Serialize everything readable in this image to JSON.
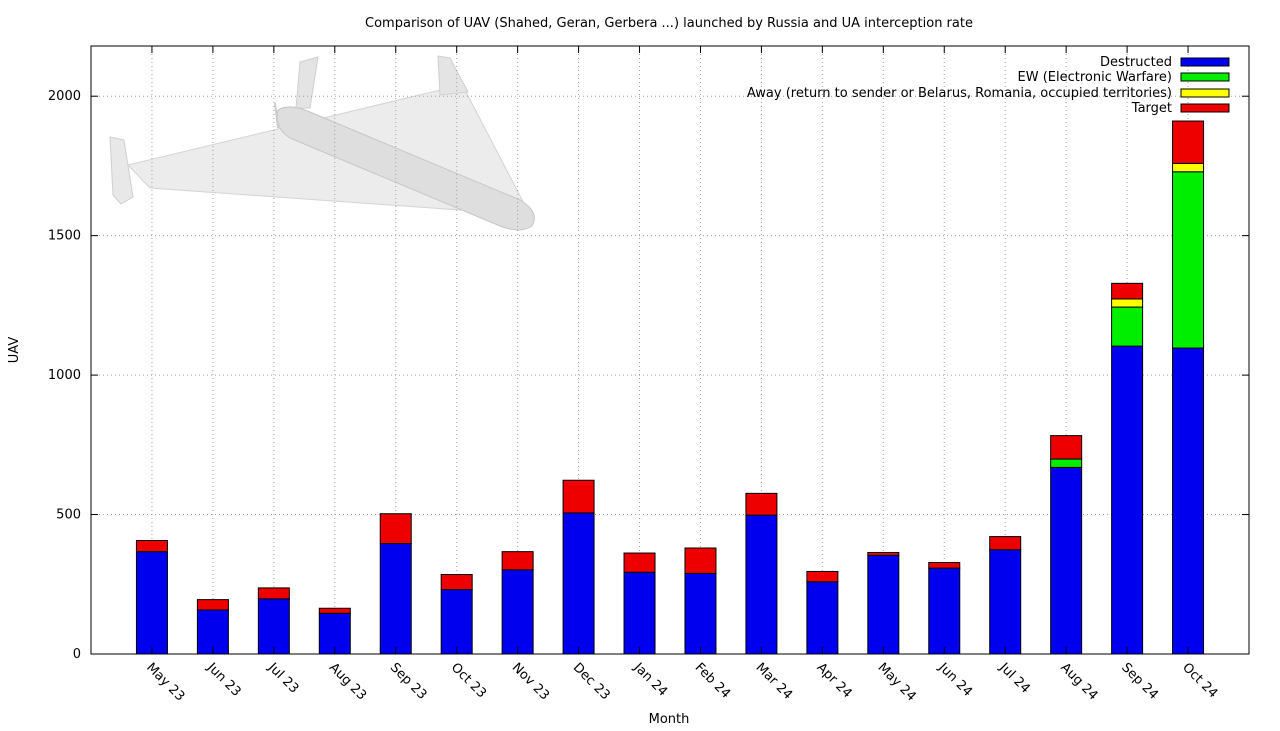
{
  "chart_data": {
    "type": "bar",
    "stacked": true,
    "title": "Comparison of UAV (Shahed, Geran, Gerbera ...) launched by Russia and UA interception rate",
    "xlabel": "Month",
    "ylabel": "UAV",
    "ylim": [
      0,
      2180
    ],
    "yticks": [
      0,
      500,
      1000,
      1500,
      2000
    ],
    "grid": true,
    "legend_position": "top-right",
    "categories": [
      "May 23",
      "Jun 23",
      "Jul 23",
      "Aug 23",
      "Sep 23",
      "Oct 23",
      "Nov 23",
      "Dec 23",
      "Jan 24",
      "Feb 24",
      "Mar 24",
      "Apr 24",
      "May 24",
      "Jun 24",
      "Jul 24",
      "Aug 24",
      "Sep 24",
      "Oct 24"
    ],
    "series": [
      {
        "name": "Destructed",
        "color": "#0000ee",
        "values": [
          367,
          158,
          198,
          146,
          396,
          231,
          302,
          506,
          293,
          289,
          498,
          259,
          354,
          308,
          374,
          669,
          1104,
          1097
        ]
      },
      {
        "name": "EW (Electronic Warfare)",
        "color": "#00ee00",
        "values": [
          0,
          0,
          0,
          0,
          0,
          0,
          0,
          0,
          0,
          0,
          0,
          0,
          0,
          0,
          0,
          30,
          140,
          632
        ]
      },
      {
        "name": "Away (return to sender or Belarus, Romania, occupied territories)",
        "color": "#ffff00",
        "values": [
          0,
          0,
          0,
          0,
          0,
          0,
          0,
          0,
          0,
          0,
          0,
          0,
          0,
          0,
          0,
          0,
          29,
          30
        ]
      },
      {
        "name": "Target",
        "color": "#ee0000",
        "values": [
          40,
          37,
          39,
          18,
          107,
          54,
          65,
          117,
          69,
          91,
          78,
          37,
          10,
          20,
          47,
          84,
          56,
          152
        ]
      }
    ]
  },
  "decoration": {
    "image": "shahed-drone-illustration"
  }
}
